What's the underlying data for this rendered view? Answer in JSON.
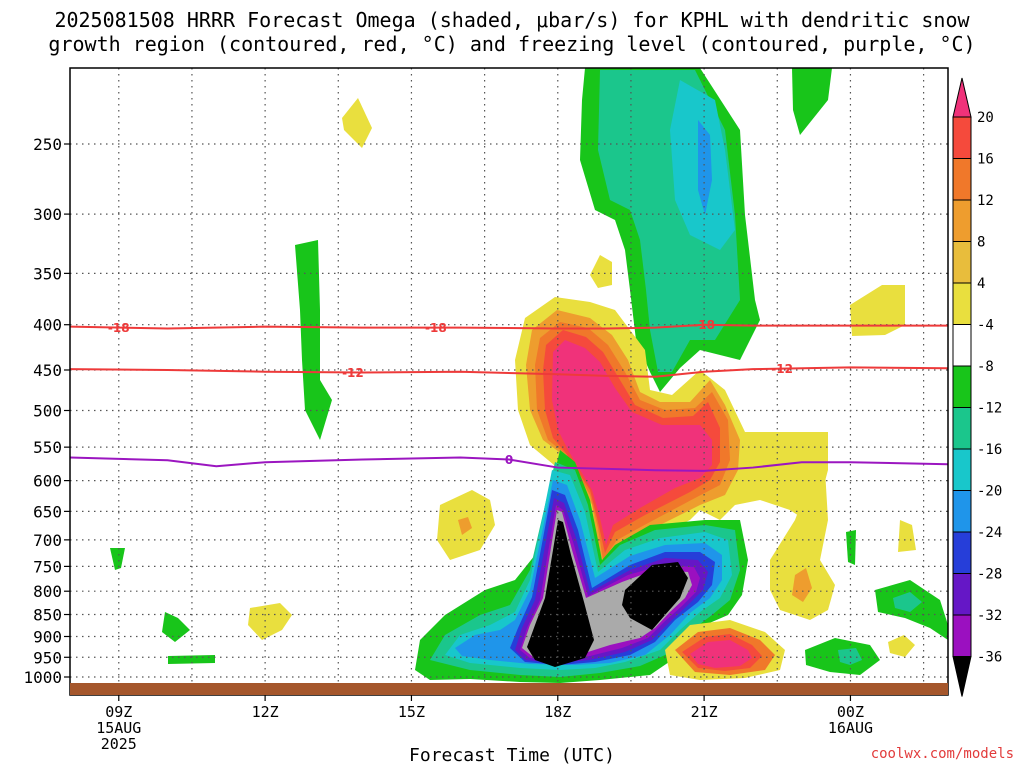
{
  "title_line1": "2025081508 HRRR Forecast Omega (shaded, μbar/s) for KPHL with dendritic snow",
  "title_line2": "growth region (contoured, red, °C) and freezing level (contoured, purple, °C)",
  "credit": "coolwx.com/models",
  "chart_data": {
    "type": "heatmap",
    "xlabel": "Forecast Time (UTC)",
    "ylabel": "",
    "y_scale": "pressure (reversed, log-like)",
    "y_ticks": [
      250,
      300,
      350,
      400,
      450,
      500,
      550,
      600,
      650,
      700,
      750,
      800,
      850,
      900,
      950,
      1000
    ],
    "x_ticks": [
      {
        "hour": 9,
        "lines": [
          "09Z",
          "15AUG",
          "2025"
        ]
      },
      {
        "hour": 12,
        "lines": [
          "12Z"
        ]
      },
      {
        "hour": 15,
        "lines": [
          "15Z"
        ]
      },
      {
        "hour": 18,
        "lines": [
          "18Z"
        ]
      },
      {
        "hour": 21,
        "lines": [
          "21Z"
        ]
      },
      {
        "hour": 24,
        "lines": [
          "00Z",
          "16AUG"
        ]
      }
    ],
    "xlim_hours": [
      8,
      26
    ],
    "ylim_hpa": [
      200,
      1025
    ],
    "grid": true,
    "colorbar": {
      "levels": [
        20,
        16,
        12,
        8,
        4,
        -4,
        -8,
        -12,
        -16,
        -20,
        -24,
        -28,
        -32,
        -36
      ],
      "colors": [
        "#f0327a",
        "#f54a3c",
        "#f0782a",
        "#ee9d2e",
        "#e8bd3c",
        "#e9df3e",
        "#ffffff",
        "#18c51a",
        "#1bc68c",
        "#18c7cb",
        "#1f95ea",
        "#263ed9",
        "#6517c6",
        "#9b10c0",
        "#aaaaaa",
        "#000000"
      ]
    },
    "contours": [
      {
        "color": "#ee3a3a",
        "label": "-18",
        "points": [
          [
            8,
            402
          ],
          [
            10,
            404
          ],
          [
            12,
            402
          ],
          [
            14,
            403
          ],
          [
            16,
            403
          ],
          [
            18,
            404
          ],
          [
            19,
            404
          ],
          [
            20,
            403
          ],
          [
            21,
            400
          ],
          [
            22,
            401
          ],
          [
            24,
            401
          ],
          [
            26,
            401
          ]
        ]
      },
      {
        "color": "#ee3a3a",
        "label": "-12",
        "points": [
          [
            8,
            449
          ],
          [
            10,
            450
          ],
          [
            12,
            452
          ],
          [
            14,
            453
          ],
          [
            16,
            452
          ],
          [
            18,
            455
          ],
          [
            19,
            457
          ],
          [
            20,
            458
          ],
          [
            21,
            452
          ],
          [
            22,
            449
          ],
          [
            24,
            447
          ],
          [
            26,
            448
          ]
        ]
      },
      {
        "color": "#9b16c0",
        "label": "0",
        "points": [
          [
            8,
            565
          ],
          [
            10,
            569
          ],
          [
            11,
            578
          ],
          [
            12,
            572
          ],
          [
            14,
            568
          ],
          [
            16,
            565
          ],
          [
            17,
            568
          ],
          [
            18,
            580
          ],
          [
            20,
            584
          ],
          [
            21,
            585
          ],
          [
            22,
            580
          ],
          [
            23,
            572
          ],
          [
            24,
            572
          ],
          [
            26,
            575
          ]
        ]
      }
    ],
    "surface_bar_color": "#a5572c"
  }
}
